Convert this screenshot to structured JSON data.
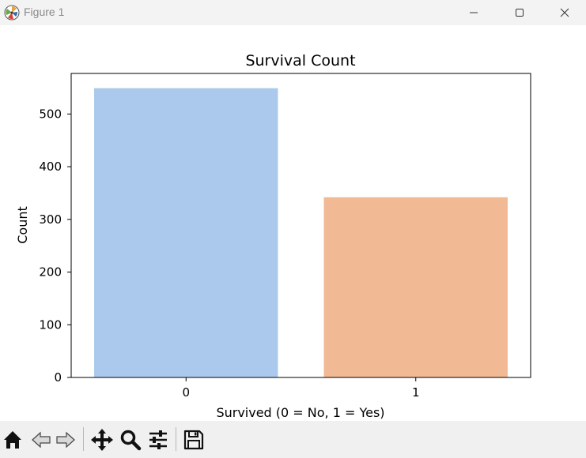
{
  "window": {
    "title": "Figure 1",
    "controls": [
      "minimize",
      "maximize",
      "close"
    ]
  },
  "toolbar": {
    "tools": [
      {
        "name": "home",
        "icon": "home-icon"
      },
      {
        "name": "back",
        "icon": "back-arrow-icon"
      },
      {
        "name": "forward",
        "icon": "forward-arrow-icon"
      },
      {
        "name": "pan",
        "icon": "move-icon"
      },
      {
        "name": "zoom",
        "icon": "magnifier-icon"
      },
      {
        "name": "configure-subplots",
        "icon": "sliders-icon"
      },
      {
        "name": "save",
        "icon": "floppy-disk-icon"
      }
    ]
  },
  "chart_data": {
    "type": "bar",
    "title": "Survival Count",
    "xlabel": "Survived (0 = No, 1 = Yes)",
    "ylabel": "Count",
    "categories": [
      "0",
      "1"
    ],
    "values": [
      549,
      342
    ],
    "colors": [
      "#abc9ec",
      "#f1b994"
    ],
    "ylim": [
      0,
      577
    ],
    "yticks": [
      0,
      100,
      200,
      300,
      400,
      500
    ],
    "grid": false
  }
}
